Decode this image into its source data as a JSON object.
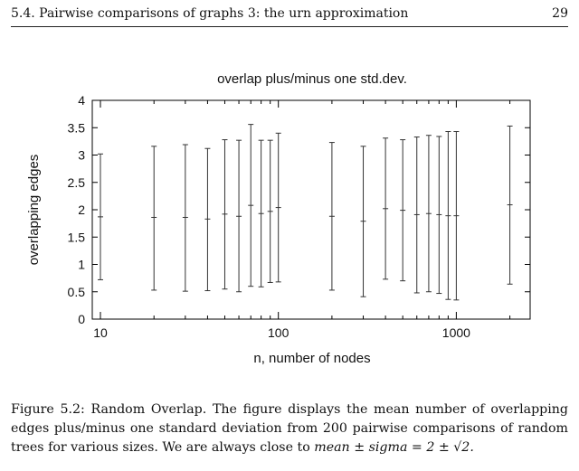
{
  "header": {
    "section_title": "5.4.  Pairwise comparisons of graphs 3: the urn approximation",
    "page_number": "29"
  },
  "chart_data": {
    "type": "errorbar",
    "title": "overlap plus/minus one std.dev.",
    "xlabel": "n, number of nodes",
    "ylabel": "overlapping edges",
    "xscale": "log",
    "xlim": [
      9,
      2600
    ],
    "ylim": [
      0,
      4
    ],
    "xticks": [
      10,
      100,
      1000
    ],
    "yticks": [
      0,
      0.5,
      1,
      1.5,
      2,
      2.5,
      3,
      3.5,
      4
    ],
    "grid": false,
    "legend": "none",
    "series": [
      {
        "points": [
          {
            "x": 10,
            "mean": 1.87,
            "low": 0.72,
            "high": 3.02
          },
          {
            "x": 20,
            "mean": 1.86,
            "low": 0.53,
            "high": 3.16
          },
          {
            "x": 30,
            "mean": 1.86,
            "low": 0.51,
            "high": 3.19
          },
          {
            "x": 40,
            "mean": 1.83,
            "low": 0.52,
            "high": 3.12
          },
          {
            "x": 50,
            "mean": 1.92,
            "low": 0.55,
            "high": 3.28
          },
          {
            "x": 60,
            "mean": 1.88,
            "low": 0.5,
            "high": 3.27
          },
          {
            "x": 70,
            "mean": 2.08,
            "low": 0.6,
            "high": 3.56
          },
          {
            "x": 80,
            "mean": 1.93,
            "low": 0.59,
            "high": 3.27
          },
          {
            "x": 90,
            "mean": 1.97,
            "low": 0.67,
            "high": 3.27
          },
          {
            "x": 100,
            "mean": 2.04,
            "low": 0.68,
            "high": 3.4
          },
          {
            "x": 200,
            "mean": 1.88,
            "low": 0.53,
            "high": 3.23
          },
          {
            "x": 300,
            "mean": 1.79,
            "low": 0.41,
            "high": 3.16
          },
          {
            "x": 400,
            "mean": 2.02,
            "low": 0.73,
            "high": 3.31
          },
          {
            "x": 500,
            "mean": 1.99,
            "low": 0.7,
            "high": 3.28
          },
          {
            "x": 600,
            "mean": 1.91,
            "low": 0.48,
            "high": 3.33
          },
          {
            "x": 700,
            "mean": 1.93,
            "low": 0.5,
            "high": 3.36
          },
          {
            "x": 800,
            "mean": 1.91,
            "low": 0.47,
            "high": 3.34
          },
          {
            "x": 900,
            "mean": 1.89,
            "low": 0.36,
            "high": 3.43
          },
          {
            "x": 1000,
            "mean": 1.89,
            "low": 0.35,
            "high": 3.43
          },
          {
            "x": 2000,
            "mean": 2.09,
            "low": 0.64,
            "high": 3.53
          }
        ]
      }
    ]
  },
  "caption": {
    "text": "Figure 5.2: Random Overlap.  The figure displays the mean number of overlapping edges plus/minus one standard deviation from 200 pairwise comparisons of random trees for various sizes. We are always close to ",
    "formula": "mean ± sigma = 2 ± √2."
  }
}
